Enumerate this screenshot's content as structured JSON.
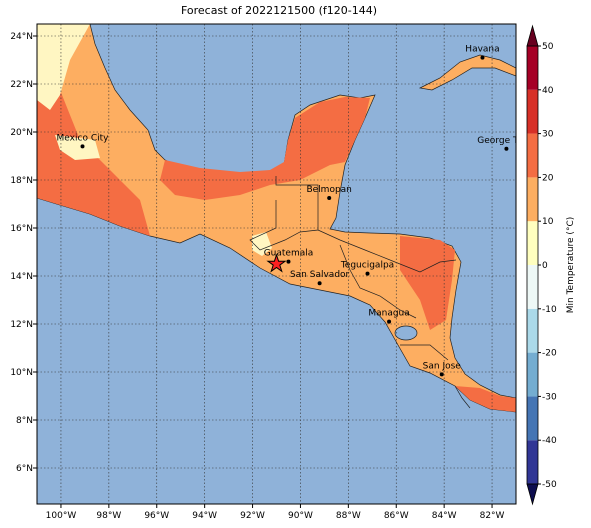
{
  "title": "Forecast of 2022121500 (f120-144)",
  "map": {
    "xlim": [
      -101,
      -81
    ],
    "ylim": [
      4.5,
      24.5
    ],
    "xticks": [
      {
        "value": -100,
        "label": "100°W"
      },
      {
        "value": -98,
        "label": "98°W"
      },
      {
        "value": -96,
        "label": "96°W"
      },
      {
        "value": -94,
        "label": "94°W"
      },
      {
        "value": -92,
        "label": "92°W"
      },
      {
        "value": -90,
        "label": "90°W"
      },
      {
        "value": -88,
        "label": "88°W"
      },
      {
        "value": -86,
        "label": "86°W"
      },
      {
        "value": -84,
        "label": "84°W"
      },
      {
        "value": -82,
        "label": "82°W"
      }
    ],
    "yticks": [
      {
        "value": 6,
        "label": "6°N"
      },
      {
        "value": 8,
        "label": "8°N"
      },
      {
        "value": 10,
        "label": "10°N"
      },
      {
        "value": 12,
        "label": "12°N"
      },
      {
        "value": 14,
        "label": "14°N"
      },
      {
        "value": 16,
        "label": "16°N"
      },
      {
        "value": 18,
        "label": "18°N"
      },
      {
        "value": 20,
        "label": "20°N"
      },
      {
        "value": 22,
        "label": "22°N"
      },
      {
        "value": 24,
        "label": "24°N"
      }
    ],
    "grid": true
  },
  "cities": [
    {
      "name": "Mexico City",
      "lon": -99.1,
      "lat": 19.4
    },
    {
      "name": "Havana",
      "lon": -82.4,
      "lat": 23.1
    },
    {
      "name": "George Town",
      "lon": -81.4,
      "lat": 19.3
    },
    {
      "name": "Belmopan",
      "lon": -88.8,
      "lat": 17.25
    },
    {
      "name": "Guatemala",
      "lon": -90.5,
      "lat": 14.6
    },
    {
      "name": "San Salvador",
      "lon": -89.2,
      "lat": 13.7
    },
    {
      "name": "Tegucigalpa",
      "lon": -87.2,
      "lat": 14.1
    },
    {
      "name": "Managua",
      "lon": -86.3,
      "lat": 12.1
    },
    {
      "name": "San Jose",
      "lon": -84.1,
      "lat": 9.9
    }
  ],
  "marker": {
    "lon": -91.0,
    "lat": 14.5,
    "color": "#ff2020"
  },
  "colorbar": {
    "label": "Min Temperature (°C)",
    "clim": [
      -50,
      50
    ],
    "ticks": [
      -50,
      -40,
      -30,
      -20,
      -10,
      0,
      10,
      20,
      30,
      40,
      50
    ],
    "colors": [
      "#313695",
      "#4575b4",
      "#74add1",
      "#abd9e9",
      "#eef8f6",
      "#ffffbf",
      "#fdae61",
      "#f46d43",
      "#d73027",
      "#a50026"
    ],
    "extend_colors": [
      "#0d0d4f",
      "#67001f"
    ]
  }
}
